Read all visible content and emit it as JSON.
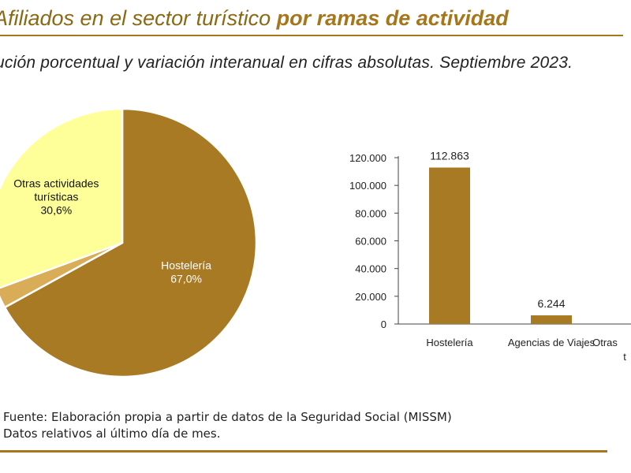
{
  "header": {
    "title_regular": "Afiliados en el sector turístico ",
    "title_bold": "por ramas de actividad",
    "subtitle": "ución porcentual y variación interanual en cifras absolutas. Septiembre 2023."
  },
  "colors": {
    "accent": "#a5761b",
    "pie_hosteleria": "#a87a24",
    "pie_agencias": "#d9ad57",
    "pie_otras": "#ffff99",
    "bar": "#a87a24"
  },
  "chart_data": [
    {
      "type": "pie",
      "slices": [
        {
          "label_lines": [
            "Hostelería",
            "67,0%"
          ],
          "value": 67.0,
          "color": "#a87a24",
          "text_color": "#ffffff"
        },
        {
          "label_lines": [],
          "value": 2.4,
          "color": "#d9ad57",
          "text_color": "#111111"
        },
        {
          "label_lines": [
            "Otras actividades",
            "turísticas",
            "30,6%"
          ],
          "value": 30.6,
          "color": "#ffff99",
          "text_color": "#111111"
        }
      ]
    },
    {
      "type": "bar",
      "categories": [
        [
          "Hostelería"
        ],
        [
          "Agencias de Viajes"
        ],
        [
          "Otras",
          "t"
        ]
      ],
      "values": [
        112863,
        6244,
        null
      ],
      "value_labels": [
        "112.863",
        "6.244",
        ""
      ],
      "ylim": [
        0,
        120000
      ],
      "yticks": [
        0,
        20000,
        40000,
        60000,
        80000,
        100000,
        120000
      ],
      "ytick_labels": [
        "0",
        "20.000",
        "40.000",
        "60.000",
        "80.000",
        "100.000",
        "120.000"
      ],
      "grid": false
    }
  ],
  "notes": [
    "Fuente: Elaboración propia a partir de datos de la Seguridad Social (MISSM)",
    "Datos relativos al último día de mes."
  ]
}
